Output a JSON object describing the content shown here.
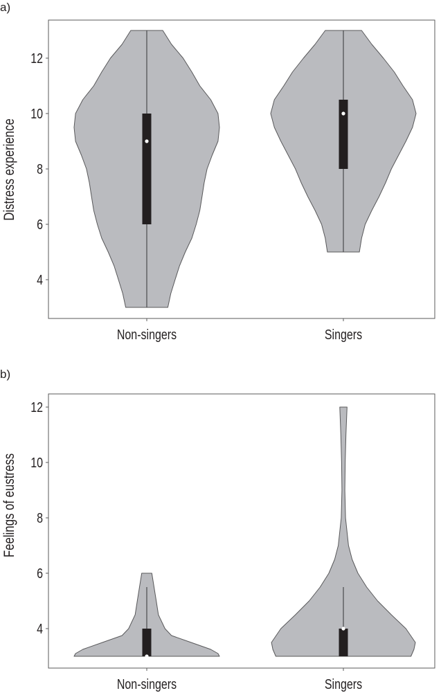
{
  "chart_data": [
    {
      "type": "violin",
      "panel_label": "a)",
      "ylabel": "Distress experience",
      "xlabel": "",
      "categories": [
        "Non-singers",
        "Singers"
      ],
      "ylim": [
        2.6,
        13.4
      ],
      "yticks": [
        4,
        6,
        8,
        10,
        12
      ],
      "grid": false,
      "series": [
        {
          "category": "Non-singers",
          "density": [
            [
              3,
              0.29
            ],
            [
              3.5,
              0.33
            ],
            [
              4,
              0.39
            ],
            [
              4.5,
              0.45
            ],
            [
              5,
              0.53
            ],
            [
              5.5,
              0.62
            ],
            [
              6,
              0.68
            ],
            [
              6.5,
              0.73
            ],
            [
              7,
              0.76
            ],
            [
              7.5,
              0.79
            ],
            [
              8,
              0.83
            ],
            [
              8.5,
              0.9
            ],
            [
              9,
              0.98
            ],
            [
              9.5,
              1.0
            ],
            [
              10,
              0.98
            ],
            [
              10.5,
              0.88
            ],
            [
              11,
              0.73
            ],
            [
              11.5,
              0.62
            ],
            [
              12,
              0.5
            ],
            [
              12.5,
              0.34
            ],
            [
              13,
              0.22
            ]
          ],
          "box": {
            "whisker_low": 3,
            "q1": 6,
            "median": 9,
            "q3": 10,
            "whisker_high": 13
          }
        },
        {
          "category": "Singers",
          "density": [
            [
              5,
              0.22
            ],
            [
              5.5,
              0.25
            ],
            [
              6,
              0.3
            ],
            [
              6.5,
              0.39
            ],
            [
              7,
              0.49
            ],
            [
              7.5,
              0.58
            ],
            [
              8,
              0.66
            ],
            [
              8.5,
              0.76
            ],
            [
              9,
              0.86
            ],
            [
              9.5,
              0.95
            ],
            [
              10,
              1.0
            ],
            [
              10.5,
              0.95
            ],
            [
              11,
              0.82
            ],
            [
              11.5,
              0.7
            ],
            [
              12,
              0.55
            ],
            [
              12.5,
              0.39
            ],
            [
              13,
              0.25
            ]
          ],
          "box": {
            "whisker_low": 5,
            "q1": 8,
            "median": 10,
            "q3": 10.5,
            "whisker_high": 13
          }
        }
      ]
    },
    {
      "type": "violin",
      "panel_label": "b)",
      "ylabel": "Feelings of eustress",
      "xlabel": "",
      "categories": [
        "Non-singers",
        "Singers"
      ],
      "ylim": [
        2.6,
        12.5
      ],
      "yticks": [
        4,
        6,
        8,
        10,
        12
      ],
      "grid": false,
      "series": [
        {
          "category": "Non-singers",
          "density": [
            [
              3,
              1.0
            ],
            [
              3.1,
              0.98
            ],
            [
              3.25,
              0.88
            ],
            [
              3.5,
              0.61
            ],
            [
              3.75,
              0.34
            ],
            [
              4,
              0.25
            ],
            [
              4.5,
              0.16
            ],
            [
              5,
              0.13
            ],
            [
              5.5,
              0.1
            ],
            [
              6,
              0.07
            ]
          ],
          "box": {
            "whisker_low": 3,
            "q1": 3,
            "median": 3,
            "q3": 4,
            "whisker_high": 5.5
          }
        },
        {
          "category": "Singers",
          "density": [
            [
              3,
              0.93
            ],
            [
              3.25,
              0.97
            ],
            [
              3.5,
              0.99
            ],
            [
              4,
              0.86
            ],
            [
              4.5,
              0.66
            ],
            [
              5,
              0.47
            ],
            [
              5.5,
              0.32
            ],
            [
              6,
              0.2
            ],
            [
              6.5,
              0.12
            ],
            [
              7,
              0.07
            ],
            [
              8,
              0.03
            ],
            [
              9,
              0.02
            ],
            [
              10,
              0.025
            ],
            [
              11,
              0.035
            ],
            [
              12,
              0.05
            ]
          ],
          "box": {
            "whisker_low": 3,
            "q1": 3,
            "median": 4,
            "q3": 4,
            "whisker_high": 5.5
          }
        }
      ]
    }
  ],
  "colors": {
    "violin_fill": "#babbbf",
    "violin_stroke": "#58585a",
    "box": "#231f20",
    "median": "#ffffff",
    "frame": "#58585a"
  }
}
